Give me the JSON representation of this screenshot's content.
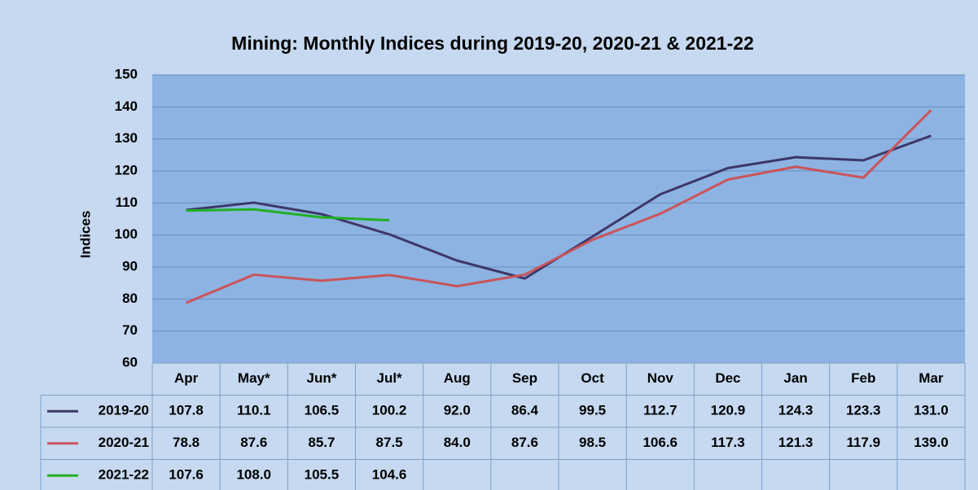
{
  "chart_data": {
    "type": "line",
    "title": "Mining: Monthly Indices  during 2019-20, 2020-21 & 2021-22",
    "y_label": "Indices",
    "categories": [
      "Apr",
      "May*",
      "Jun*",
      "Jul*",
      "Aug",
      "Sep",
      "Oct",
      "Nov",
      "Dec",
      "Jan",
      "Feb",
      "Mar"
    ],
    "series": [
      {
        "name": "2019-20",
        "color": "#3d3768",
        "values": [
          107.8,
          110.1,
          106.5,
          100.2,
          92.0,
          86.4,
          99.5,
          112.7,
          120.9,
          124.3,
          123.3,
          131.0
        ],
        "value_labels": [
          "107.8",
          "110.1",
          "106.5",
          "100.2",
          "92.0",
          "86.4",
          "99.5",
          "112.7",
          "120.9",
          "124.3",
          "123.3",
          "131.0"
        ]
      },
      {
        "name": "2020-21",
        "color": "#c9545a",
        "values": [
          78.8,
          87.6,
          85.7,
          87.5,
          84.0,
          87.6,
          98.5,
          106.6,
          117.3,
          121.3,
          117.9,
          139.0
        ],
        "value_labels": [
          "78.8",
          "87.6",
          "85.7",
          "87.5",
          "84.0",
          "87.6",
          "98.5",
          "106.6",
          "117.3",
          "121.3",
          "117.9",
          "139.0"
        ]
      },
      {
        "name": "2021-22",
        "color": "#22b024",
        "values": [
          107.6,
          108.0,
          105.5,
          104.6,
          null,
          null,
          null,
          null,
          null,
          null,
          null,
          null
        ],
        "value_labels": [
          "107.6",
          "108.0",
          "105.5",
          "104.6",
          null,
          null,
          null,
          null,
          null,
          null,
          null,
          null
        ]
      }
    ],
    "ylim": [
      60,
      150
    ],
    "yticks": [
      60,
      70,
      80,
      90,
      100,
      110,
      120,
      130,
      140,
      150
    ],
    "grid": true
  }
}
